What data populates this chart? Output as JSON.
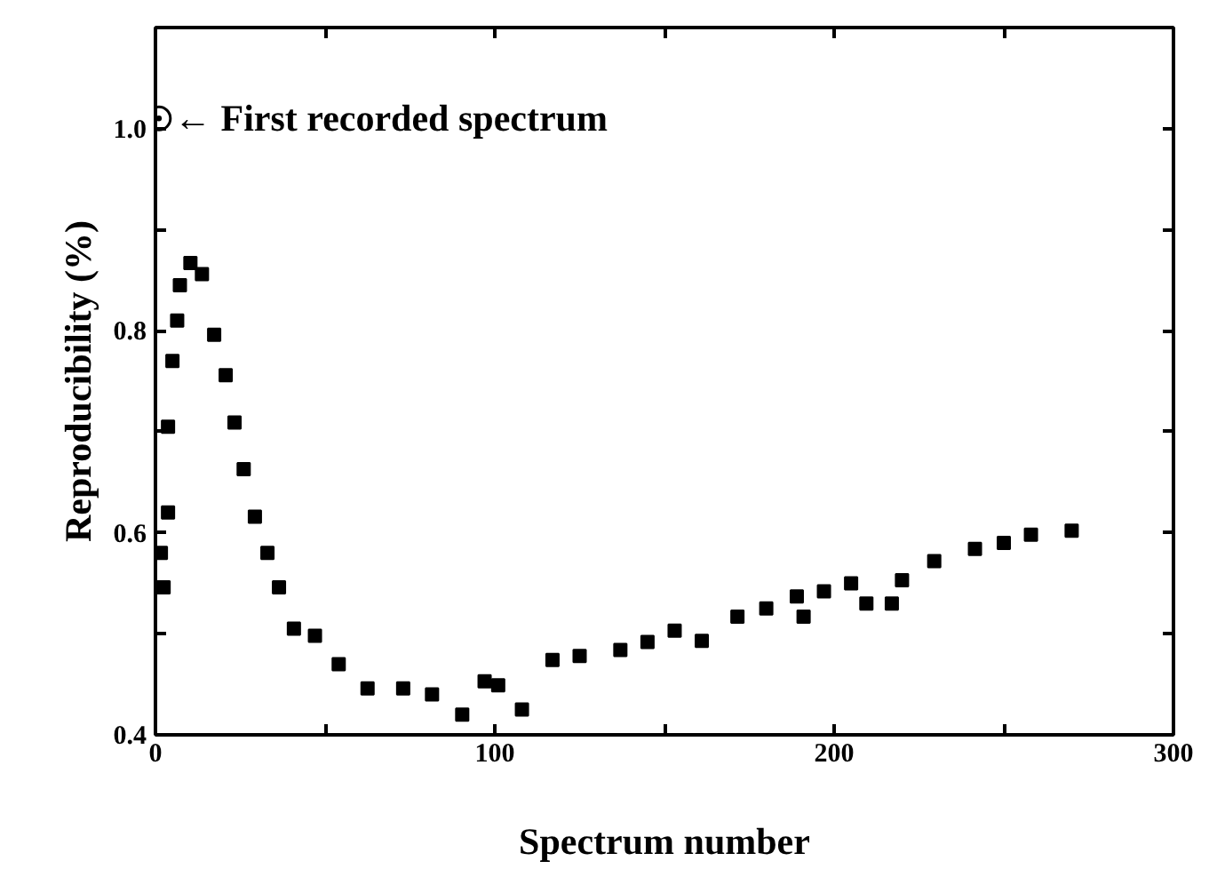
{
  "chart_data": {
    "type": "scatter",
    "xlabel": "Spectrum number",
    "ylabel": "Reproducibility (%)",
    "xlim": [
      0,
      300
    ],
    "ylim": [
      0.4,
      1.1
    ],
    "xticks": [
      0,
      {
        "value": 50,
        "label": null
      },
      100,
      {
        "value": 150,
        "label": null
      },
      200,
      {
        "value": 250,
        "label": null
      },
      300
    ],
    "yticks": [
      0.4,
      {
        "value": 0.5,
        "label": null
      },
      0.6,
      {
        "value": 0.7,
        "label": null
      },
      0.8,
      {
        "value": 0.9,
        "label": null
      },
      {
        "value": 1.0,
        "label": "1.0"
      }
    ],
    "grid": false,
    "series": [
      {
        "color": "#000000",
        "marker": "circle",
        "x": [
          1
        ],
        "values": [
          1.01
        ]
      },
      {
        "color": "#000000",
        "marker": "square",
        "x": [
          1.6,
          2.4,
          3.7,
          3.7,
          5,
          6.4,
          7.2,
          10.3,
          13.7,
          17.3,
          20.7,
          23.3,
          26,
          29.3,
          33,
          36.4,
          40.8,
          47,
          54,
          62.5,
          73,
          81.5,
          90.4,
          97,
          101,
          108,
          117,
          125,
          137,
          145,
          153,
          161,
          171.5,
          180,
          189,
          191,
          197,
          205,
          209.5,
          217,
          220,
          229.5,
          241.5,
          250,
          258,
          270
        ],
        "values": [
          0.58,
          0.546,
          0.62,
          0.705,
          0.77,
          0.81,
          0.845,
          0.867,
          0.856,
          0.796,
          0.756,
          0.709,
          0.663,
          0.616,
          0.58,
          0.546,
          0.505,
          0.498,
          0.47,
          0.446,
          0.446,
          0.44,
          0.42,
          0.453,
          0.449,
          0.425,
          0.474,
          0.478,
          0.484,
          0.492,
          0.503,
          0.493,
          0.517,
          0.525,
          0.537,
          0.517,
          0.542,
          0.55,
          0.53,
          0.53,
          0.553,
          0.572,
          0.584,
          0.59,
          0.598,
          0.602
        ]
      }
    ],
    "annotations": [
      {
        "text": "← First recorded spectrum",
        "x": 1,
        "y": 1.01
      }
    ]
  }
}
